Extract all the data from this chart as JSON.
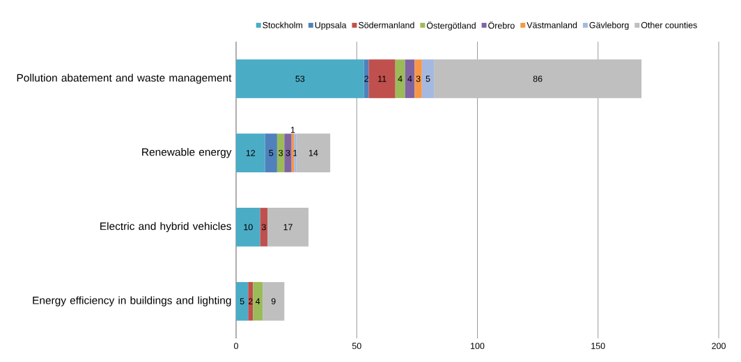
{
  "chart_data": {
    "type": "bar",
    "orientation": "horizontal",
    "stacked": true,
    "data_labels": true,
    "grid": "x",
    "legend": "top",
    "categories": [
      "Pollution abatement and waste management",
      "Renewable energy",
      "Electric and hybrid vehicles",
      "Energy efficiency in buildings and lighting"
    ],
    "xlim": [
      0,
      200
    ],
    "xticks": [
      0,
      50,
      100,
      150,
      200
    ],
    "series": [
      {
        "name": "Stockholm",
        "color": "#4bacc6",
        "values": [
          53,
          12,
          10,
          5
        ]
      },
      {
        "name": "Uppsala",
        "color": "#4f81bd",
        "values": [
          2,
          5,
          null,
          null
        ]
      },
      {
        "name": "Södermanland",
        "color": "#c0504d",
        "values": [
          11,
          null,
          3,
          2
        ]
      },
      {
        "name": "Östergötland",
        "color": "#9bbb59",
        "values": [
          4,
          3,
          null,
          4
        ]
      },
      {
        "name": "Örebro",
        "color": "#8064a2",
        "values": [
          4,
          3,
          null,
          null
        ]
      },
      {
        "name": "Västmanland",
        "color": "#f79646",
        "values": [
          3,
          1,
          null,
          null
        ]
      },
      {
        "name": "Gävleborg",
        "color": "#a5b9e0",
        "values": [
          5,
          1,
          null,
          null
        ]
      },
      {
        "name": "Other counties",
        "color": "#bfbfbf",
        "values": [
          86,
          14,
          17,
          9
        ]
      }
    ]
  }
}
